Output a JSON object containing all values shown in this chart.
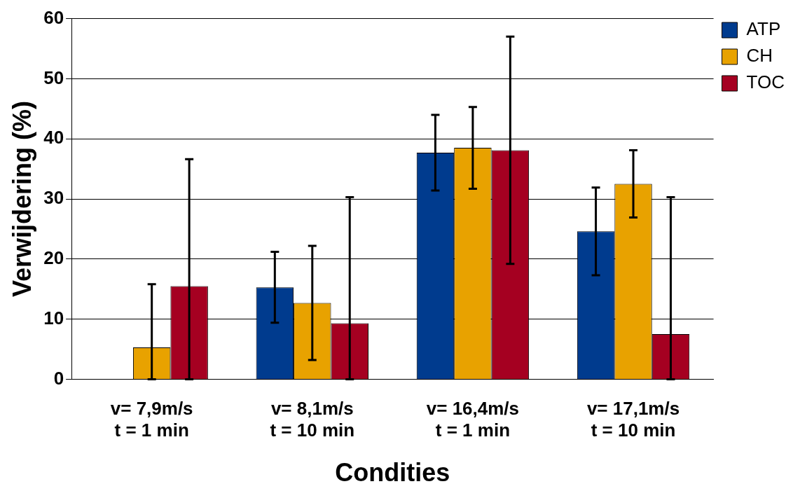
{
  "chart_data": {
    "type": "bar",
    "xlabel": "Condities",
    "ylabel": "Verwijdering (%)",
    "categories": [
      "v= 7,9m/s\nt = 1 min",
      "v= 8,1m/s\nt = 10 min",
      "v= 16,4m/s\nt = 1 min",
      "v= 17,1m/s\nt = 10 min"
    ],
    "series": [
      {
        "name": "ATP",
        "color": "#003b8e",
        "values": [
          null,
          15.3,
          37.7,
          24.6
        ],
        "errors": [
          null,
          5.9,
          6.3,
          7.3
        ]
      },
      {
        "name": "CH",
        "color": "#e8a200",
        "values": [
          5.3,
          12.7,
          38.5,
          32.5
        ],
        "errors": [
          [
            0,
            15.8
          ],
          9.5,
          6.8,
          5.6
        ]
      },
      {
        "name": "TOC",
        "color": "#a50021",
        "values": [
          15.5,
          9.3,
          38.1,
          7.5
        ],
        "errors": [
          [
            0,
            36.6
          ],
          [
            0,
            30.3
          ],
          18.9,
          [
            0,
            30.3
          ]
        ]
      }
    ],
    "ylim": [
      0,
      60
    ],
    "yticks": [
      0,
      10,
      20,
      30,
      40,
      50,
      60
    ],
    "grid": "y",
    "legend": "top right"
  }
}
